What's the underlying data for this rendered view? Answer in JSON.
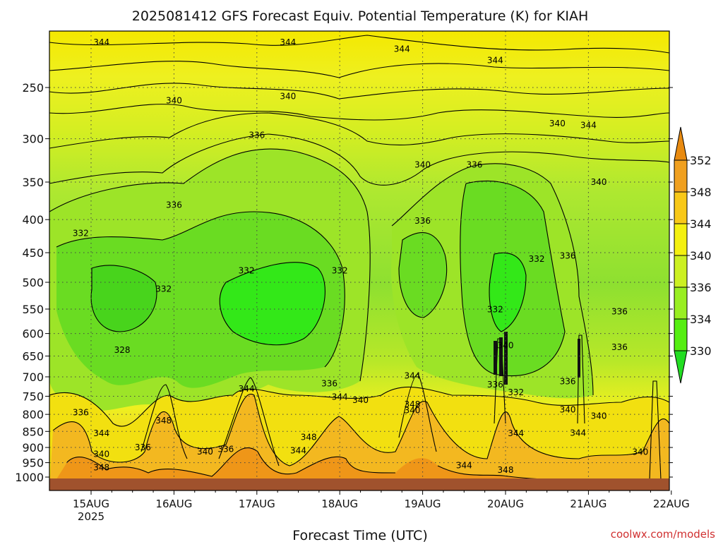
{
  "chart_data": {
    "type": "heatmap",
    "title": "2025081412 GFS Forecast Equiv. Potential Temperature (K) for KIAH",
    "xlabel": "Forecast Time (UTC)",
    "ylabel": "",
    "credit": "coolwx.com/models",
    "y_ticks": [
      "250",
      "300",
      "350",
      "400",
      "450",
      "500",
      "550",
      "600",
      "650",
      "700",
      "750",
      "800",
      "850",
      "900",
      "950",
      "1000"
    ],
    "y_axis": "pressure (hPa), inverted",
    "x_ticks": [
      "15AUG",
      "16AUG",
      "17AUG",
      "18AUG",
      "19AUG",
      "20AUG",
      "21AUG",
      "22AUG"
    ],
    "x_year_label": "2025",
    "colorbar": {
      "levels": [
        330,
        334,
        336,
        340,
        344,
        348,
        352
      ],
      "labels": [
        "330",
        "334",
        "336",
        "340",
        "344",
        "348",
        "352"
      ],
      "colors": [
        "#22dd22",
        "#55ee11",
        "#99ee22",
        "#ccf022",
        "#f4f010",
        "#f8c818",
        "#f0a020",
        "#e88a10"
      ]
    },
    "contour_labels": [
      {
        "value": "344",
        "time": "15AUG03",
        "p": 213
      },
      {
        "value": "344",
        "time": "17AUG09",
        "p": 213
      },
      {
        "value": "344",
        "time": "18AUG18",
        "p": 218
      },
      {
        "value": "344",
        "time": "19AUG21",
        "p": 227
      },
      {
        "value": "340",
        "time": "16AUG00",
        "p": 262
      },
      {
        "value": "340",
        "time": "17AUG09",
        "p": 258
      },
      {
        "value": "340",
        "time": "20AUG15",
        "p": 284
      },
      {
        "value": "344",
        "time": "21AUG00",
        "p": 286
      },
      {
        "value": "336",
        "time": "17AUG00",
        "p": 296
      },
      {
        "value": "340",
        "time": "19AUG00",
        "p": 329
      },
      {
        "value": "336",
        "time": "19AUG15",
        "p": 329
      },
      {
        "value": "340",
        "time": "21AUG03",
        "p": 350
      },
      {
        "value": "336",
        "time": "16AUG00",
        "p": 380
      },
      {
        "value": "336",
        "time": "19AUG00",
        "p": 402
      },
      {
        "value": "332",
        "time": "14AUG21",
        "p": 420
      },
      {
        "value": "332",
        "time": "16AUG21",
        "p": 480
      },
      {
        "value": "332",
        "time": "18AUG00",
        "p": 480
      },
      {
        "value": "332",
        "time": "20AUG09",
        "p": 460
      },
      {
        "value": "336",
        "time": "20AUG18",
        "p": 455
      },
      {
        "value": "332",
        "time": "15AUG21",
        "p": 512
      },
      {
        "value": "332",
        "time": "19AUG21",
        "p": 551
      },
      {
        "value": "336",
        "time": "21AUG09",
        "p": 555
      },
      {
        "value": "328",
        "time": "15AUG09",
        "p": 636
      },
      {
        "value": "340",
        "time": "20AUG00",
        "p": 626
      },
      {
        "value": "336",
        "time": "21AUG09",
        "p": 630
      },
      {
        "value": "336",
        "time": "17AUG21",
        "p": 717
      },
      {
        "value": "344",
        "time": "18AUG21",
        "p": 697
      },
      {
        "value": "336",
        "time": "19AUG21",
        "p": 720
      },
      {
        "value": "336",
        "time": "20AUG18",
        "p": 712
      },
      {
        "value": "332",
        "time": "20AUG03",
        "p": 740
      },
      {
        "value": "344",
        "time": "16AUG21",
        "p": 731
      },
      {
        "value": "344",
        "time": "18AUG00",
        "p": 752
      },
      {
        "value": "348",
        "time": "18AUG21",
        "p": 772
      },
      {
        "value": "340",
        "time": "18AUG06",
        "p": 761
      },
      {
        "value": "340",
        "time": "18AUG21",
        "p": 789
      },
      {
        "value": "336",
        "time": "14AUG21",
        "p": 795
      },
      {
        "value": "348",
        "time": "15AUG21",
        "p": 818
      },
      {
        "value": "340",
        "time": "20AUG18",
        "p": 787
      },
      {
        "value": "340",
        "time": "21AUG03",
        "p": 805
      },
      {
        "value": "344",
        "time": "15AUG03",
        "p": 856
      },
      {
        "value": "344",
        "time": "20AUG03",
        "p": 856
      },
      {
        "value": "344",
        "time": "20AUG21",
        "p": 855
      },
      {
        "value": "348",
        "time": "17AUG15",
        "p": 868
      },
      {
        "value": "336",
        "time": "15AUG15",
        "p": 900
      },
      {
        "value": "336",
        "time": "16AUG15",
        "p": 905
      },
      {
        "value": "340",
        "time": "15AUG03",
        "p": 922
      },
      {
        "value": "340",
        "time": "16AUG09",
        "p": 914
      },
      {
        "value": "344",
        "time": "17AUG12",
        "p": 910
      },
      {
        "value": "340",
        "time": "21AUG15",
        "p": 915
      },
      {
        "value": "344",
        "time": "19AUG12",
        "p": 959
      },
      {
        "value": "348",
        "time": "15AUG03",
        "p": 967
      },
      {
        "value": "348",
        "time": "20AUG00",
        "p": 975
      }
    ]
  }
}
